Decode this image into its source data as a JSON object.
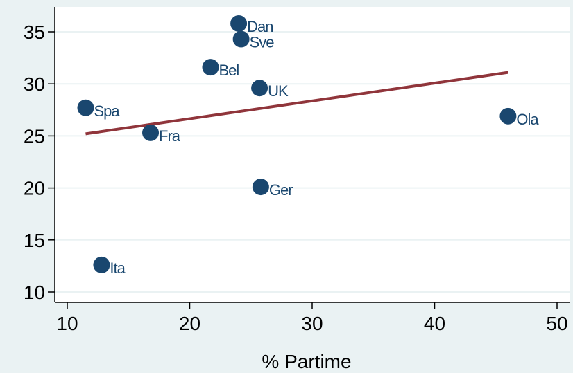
{
  "chart_data": {
    "type": "scatter",
    "title": "",
    "xlabel": "% Partime",
    "ylabel": "",
    "xlim": [
      10,
      50
    ],
    "ylim": [
      10,
      35
    ],
    "xticks": [
      "10",
      "20",
      "30",
      "40",
      "50"
    ],
    "yticks": [
      "10",
      "15",
      "20",
      "25",
      "30",
      "35"
    ],
    "grid": "horizontal",
    "points": [
      {
        "label": "Dan",
        "x": 24.0,
        "y": 35.8
      },
      {
        "label": "Sve",
        "x": 24.2,
        "y": 34.3
      },
      {
        "label": "Bel",
        "x": 21.7,
        "y": 31.6
      },
      {
        "label": "UK",
        "x": 25.7,
        "y": 29.6
      },
      {
        "label": "Spa",
        "x": 11.5,
        "y": 27.7
      },
      {
        "label": "Ola",
        "x": 46.0,
        "y": 26.9
      },
      {
        "label": "Fra",
        "x": 16.8,
        "y": 25.3
      },
      {
        "label": "Ger",
        "x": 25.8,
        "y": 20.1
      },
      {
        "label": "Ita",
        "x": 12.8,
        "y": 12.6
      }
    ],
    "fit_line": {
      "x": [
        11.5,
        46.0
      ],
      "y": [
        25.2,
        31.1
      ]
    },
    "colors": {
      "marker": "#1a476f",
      "fit_line": "#90353b",
      "plot_bg": "#ffffff",
      "page_bg": "#eaf2f3",
      "grid": "#eaf2f3"
    }
  }
}
